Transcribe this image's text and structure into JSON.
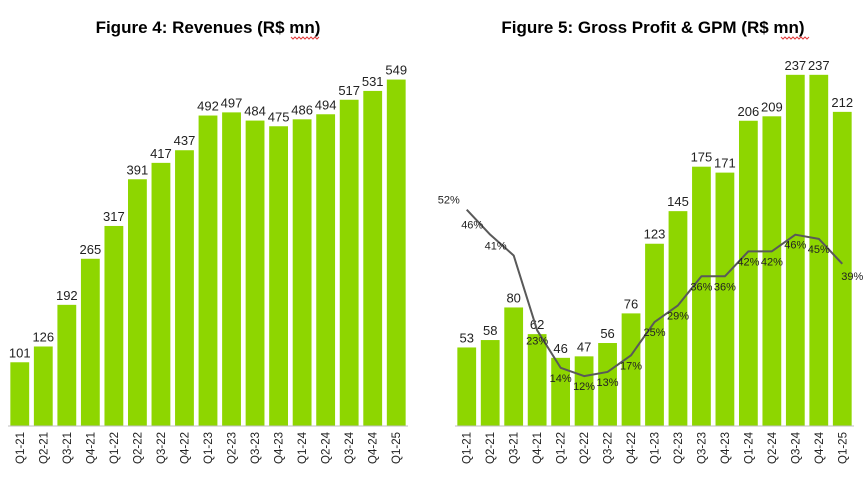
{
  "colors": {
    "bar": "#8ed600",
    "line": "#595959",
    "axis": "#bfbfbf"
  },
  "chart_data": [
    {
      "type": "bar",
      "title": "Figure 4: Revenues (R$ mn)",
      "categories": [
        "Q1-21",
        "Q2-21",
        "Q3-21",
        "Q4-21",
        "Q1-22",
        "Q2-22",
        "Q3-22",
        "Q4-22",
        "Q1-23",
        "Q2-23",
        "Q3-23",
        "Q4-23",
        "Q1-24",
        "Q2-24",
        "Q3-24",
        "Q4-24",
        "Q1-25"
      ],
      "values": [
        101,
        126,
        192,
        265,
        317,
        391,
        417,
        437,
        492,
        497,
        484,
        475,
        486,
        494,
        517,
        531,
        549
      ],
      "ylim": [
        0,
        580
      ],
      "xlabel": "",
      "ylabel": ""
    },
    {
      "type": "bar+line",
      "title": "Figure 5: Gross Profit & GPM (R$ mn)",
      "categories": [
        "Q1-21",
        "Q2-21",
        "Q3-21",
        "Q4-21",
        "Q1-22",
        "Q2-22",
        "Q3-22",
        "Q4-22",
        "Q1-23",
        "Q2-23",
        "Q3-23",
        "Q4-23",
        "Q1-24",
        "Q2-24",
        "Q3-24",
        "Q4-24",
        "Q1-25"
      ],
      "series": [
        {
          "name": "Gross Profit",
          "type": "bar",
          "values": [
            53,
            58,
            80,
            62,
            46,
            47,
            56,
            76,
            123,
            145,
            175,
            171,
            206,
            209,
            237,
            237,
            212
          ]
        },
        {
          "name": "GPM",
          "type": "line",
          "values": [
            52,
            46,
            41,
            23,
            14,
            12,
            13,
            17,
            25,
            29,
            36,
            36,
            42,
            42,
            46,
            45,
            39
          ],
          "labels": [
            "52%",
            "46%",
            "41%",
            "23%",
            "14%",
            "12%",
            "13%",
            "17%",
            "25%",
            "29%",
            "36%",
            "36%",
            "42%",
            "42%",
            "46%",
            "45%",
            "39%"
          ]
        }
      ],
      "ylim": [
        0,
        247
      ],
      "y2lim": [
        0,
        88
      ],
      "xlabel": "",
      "ylabel": ""
    }
  ]
}
